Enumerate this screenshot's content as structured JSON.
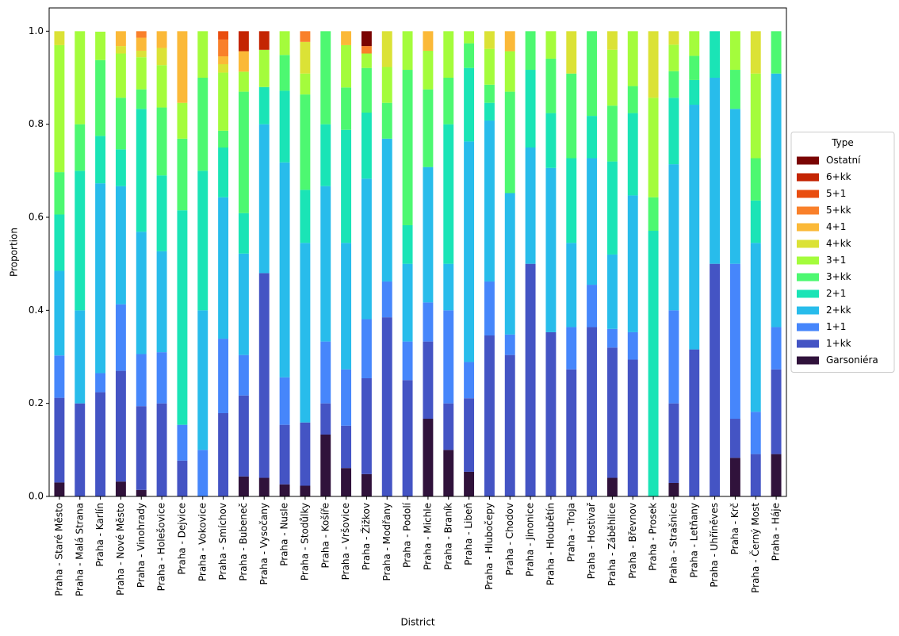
{
  "chart_data": {
    "type": "stacked_bar",
    "xlabel": "District",
    "ylabel": "Proportion",
    "legend_title": "Type",
    "legend": "center right",
    "categories": [
      "Praha - Staré Město",
      "Praha - Malá Strana",
      "Praha - Karlín",
      "Praha - Nové Město",
      "Praha - Vinohrady",
      "Praha - Holešovice",
      "Praha - Dejvice",
      "Praha - Vokovice",
      "Praha - Smíchov",
      "Praha - Bubeneč",
      "Praha - Vysočany",
      "Praha - Nusle",
      "Praha - Stodůlky",
      "Praha - Košíře",
      "Praha - Vršovice",
      "Praha - Žižkov",
      "Praha - Modřany",
      "Praha - Podolí",
      "Praha - Michle",
      "Praha - Braník",
      "Praha - Libeň",
      "Praha - Hlubočepy",
      "Praha - Chodov",
      "Praha - Jinonice",
      "Praha - Hloubětín",
      "Praha - Troja",
      "Praha - Hostivař",
      "Praha - Záběhlice",
      "Praha - Břevnov",
      "Praha - Prosek",
      "Praha - Strašnice",
      "Praha - Letňany",
      "Praha - Uhříněves",
      "Praha - Krč",
      "Praha - Černý Most",
      "Praha - Háje"
    ],
    "ylim": [
      0,
      1.05
    ],
    "yticks": [
      {
        "value": 0,
        "label": "0.0"
      },
      {
        "value": 0.2,
        "label": "0.2"
      },
      {
        "value": 0.4,
        "label": "0.4"
      },
      {
        "value": 0.6,
        "label": "0.6"
      },
      {
        "value": 0.8,
        "label": "0.8"
      },
      {
        "value": 1,
        "label": "1.0"
      }
    ],
    "series": [
      {
        "name": "Garsoniéra",
        "color": "#30123b",
        "values": [
          0.03,
          0,
          0,
          0.032,
          0.014,
          0,
          0,
          0,
          0,
          0.043,
          0.04,
          0.026,
          0.023,
          0.133,
          0.061,
          0.048,
          0,
          0,
          0.167,
          0.1,
          0.053,
          0,
          0,
          0,
          0,
          0,
          0,
          0.04,
          0,
          0,
          0.029,
          0,
          0,
          0.083,
          0,
          0.091
        ]
      },
      {
        "name": "1+kk",
        "color": "#4454c4",
        "values": [
          0.182,
          0.2,
          0.224,
          0.238,
          0.18,
          0.2,
          0.077,
          0,
          0.179,
          0.174,
          0.44,
          0.128,
          0.136,
          0.067,
          0.091,
          0.206,
          0.385,
          0.25,
          0.166,
          0.1,
          0.158,
          0.346,
          0.304,
          0.5,
          0.353,
          0.273,
          0.364,
          0.28,
          0.294,
          0,
          0.171,
          0.316,
          0.5,
          0.084,
          0.091,
          0.182
        ]
      },
      {
        "name": "1+1",
        "color": "#4686fb",
        "values": [
          0.091,
          0,
          0.041,
          0.143,
          0.112,
          0.11,
          0.077,
          0.1,
          0.16,
          0.087,
          0,
          0.102,
          0,
          0.133,
          0.121,
          0.127,
          0.077,
          0.083,
          0.084,
          0.2,
          0.078,
          0.116,
          0.044,
          0,
          0,
          0.091,
          0.091,
          0.04,
          0.059,
          0,
          0.2,
          0,
          0,
          0.333,
          0.091,
          0.091
        ]
      },
      {
        "name": "2+kk",
        "color": "#28bceb",
        "values": [
          0.182,
          0.2,
          0.408,
          0.254,
          0.263,
          0.217,
          0,
          0.3,
          0.304,
          0.218,
          0.32,
          0.462,
          0.386,
          0.334,
          0.272,
          0.302,
          0.307,
          0.167,
          0.291,
          0.1,
          0.474,
          0.346,
          0.304,
          0.25,
          0.353,
          0.181,
          0.272,
          0.16,
          0.294,
          0,
          0.314,
          0.526,
          0.4,
          0.333,
          0.363,
          0.545
        ]
      },
      {
        "name": "2+1",
        "color": "#1ae4b6",
        "values": [
          0.121,
          0.3,
          0.102,
          0.079,
          0.264,
          0.163,
          0.461,
          0.3,
          0.107,
          0.087,
          0.08,
          0.154,
          0.114,
          0.133,
          0.243,
          0.142,
          0,
          0.083,
          0,
          0.3,
          0.158,
          0.038,
          0,
          0.167,
          0.118,
          0.182,
          0.091,
          0.2,
          0.177,
          0.571,
          0.143,
          0.053,
          0.1,
          0,
          0.091,
          0
        ]
      },
      {
        "name": "3+kk",
        "color": "#4df871",
        "values": [
          0.091,
          0.1,
          0.163,
          0.111,
          0.042,
          0.146,
          0.154,
          0.2,
          0.036,
          0.261,
          0,
          0.077,
          0.205,
          0.2,
          0.091,
          0.096,
          0.077,
          0.334,
          0.167,
          0.1,
          0.053,
          0.039,
          0.218,
          0.083,
          0.117,
          0.182,
          0.182,
          0.12,
          0.058,
          0.072,
          0.057,
          0.052,
          0,
          0.084,
          0.091,
          0.091
        ]
      },
      {
        "name": "3+1",
        "color": "#a4fc3c",
        "values": [
          0.273,
          0.2,
          0.061,
          0.095,
          0.069,
          0.091,
          0.077,
          0.1,
          0.125,
          0.043,
          0.08,
          0.051,
          0.045,
          0,
          0.091,
          0.031,
          0.077,
          0.083,
          0.083,
          0.1,
          0.026,
          0.077,
          0.087,
          0,
          0.059,
          0,
          0,
          0.12,
          0.118,
          0.214,
          0.057,
          0.053,
          0,
          0.083,
          0.182,
          0
        ]
      },
      {
        "name": "4+kk",
        "color": "#dbe236",
        "values": [
          0.03,
          0,
          0,
          0.016,
          0.014,
          0.037,
          0,
          0,
          0.018,
          0,
          0,
          0,
          0.068,
          0,
          0,
          0,
          0.077,
          0,
          0,
          0,
          0,
          0.038,
          0,
          0,
          0,
          0.091,
          0,
          0.04,
          0,
          0.143,
          0.029,
          0,
          0,
          0,
          0.091,
          0
        ]
      },
      {
        "name": "4+1",
        "color": "#fbb938",
        "values": [
          0,
          0,
          0,
          0.032,
          0.028,
          0.036,
          0.154,
          0,
          0.017,
          0.044,
          0,
          0,
          0,
          0,
          0.03,
          0,
          0,
          0,
          0.042,
          0,
          0,
          0,
          0.043,
          0,
          0,
          0,
          0,
          0,
          0,
          0,
          0,
          0,
          0,
          0,
          0,
          0
        ]
      },
      {
        "name": "5+kk",
        "color": "#f9802a",
        "values": [
          0,
          0,
          0,
          0,
          0.014,
          0,
          0,
          0,
          0.036,
          0,
          0,
          0,
          0.023,
          0,
          0,
          0.016,
          0,
          0,
          0,
          0,
          0,
          0,
          0,
          0,
          0,
          0,
          0,
          0,
          0,
          0,
          0,
          0,
          0,
          0,
          0,
          0
        ]
      },
      {
        "name": "5+1",
        "color": "#e94e10",
        "values": [
          0,
          0,
          0,
          0,
          0,
          0,
          0,
          0,
          0.018,
          0,
          0,
          0,
          0,
          0,
          0,
          0,
          0,
          0,
          0,
          0,
          0,
          0,
          0,
          0,
          0,
          0,
          0,
          0,
          0,
          0,
          0,
          0,
          0,
          0,
          0,
          0
        ]
      },
      {
        "name": "6+kk",
        "color": "#c42503",
        "values": [
          0,
          0,
          0,
          0,
          0,
          0,
          0,
          0,
          0,
          0.043,
          0.04,
          0,
          0,
          0,
          0,
          0,
          0,
          0,
          0,
          0,
          0,
          0,
          0,
          0,
          0,
          0,
          0,
          0,
          0,
          0,
          0,
          0,
          0,
          0,
          0,
          0
        ]
      },
      {
        "name": "Ostatní",
        "color": "#7a0403",
        "values": [
          0,
          0,
          0,
          0,
          0,
          0,
          0,
          0,
          0,
          0,
          0,
          0,
          0,
          0,
          0,
          0.032,
          0,
          0,
          0,
          0,
          0,
          0,
          0,
          0,
          0,
          0,
          0,
          0,
          0,
          0,
          0,
          0,
          0,
          0,
          0,
          0
        ]
      }
    ]
  }
}
